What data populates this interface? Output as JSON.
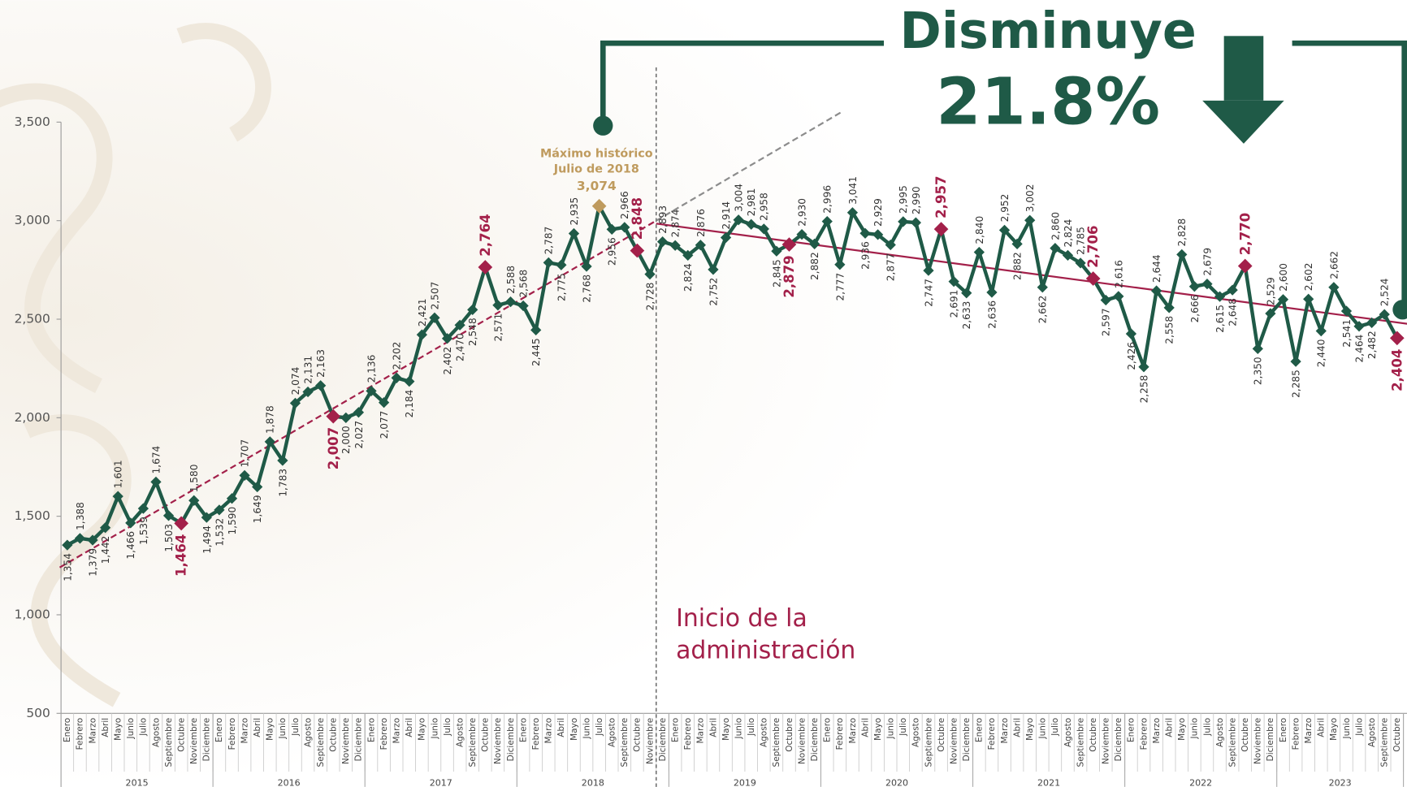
{
  "chart_data": {
    "type": "line",
    "headline": "Disminuye",
    "headline_value": "21.8%",
    "categories": [
      "Enero",
      "Febrero",
      "Marzo",
      "Abril",
      "Mayo",
      "Junio",
      "Julio",
      "Agosto",
      "Septiembre",
      "Octubre",
      "Noviembre",
      "Diciembre",
      "Enero",
      "Febrero",
      "Marzo",
      "Abril",
      "Mayo",
      "Junio",
      "Julio",
      "Agosto",
      "Septiembre",
      "Octubre",
      "Noviembre",
      "Diciembre",
      "Enero",
      "Febrero",
      "Marzo",
      "Abril",
      "Mayo",
      "Junio",
      "Julio",
      "Agosto",
      "Septiembre",
      "Octubre",
      "Noviembre",
      "Diciembre",
      "Enero",
      "Febrero",
      "Marzo",
      "Abril",
      "Mayo",
      "Junio",
      "Julio",
      "Agosto",
      "Septiembre",
      "Octubre",
      "Noviembre",
      "Diciembre",
      "Enero",
      "Febrero",
      "Marzo",
      "Abril",
      "Mayo",
      "Junio",
      "Julio",
      "Agosto",
      "Septiembre",
      "Octubre",
      "Noviembre",
      "Diciembre",
      "Enero",
      "Febrero",
      "Marzo",
      "Abril",
      "Mayo",
      "Junio",
      "Julio",
      "Agosto",
      "Septiembre",
      "Octubre",
      "Noviembre",
      "Diciembre",
      "Enero",
      "Febrero",
      "Marzo",
      "Abril",
      "Mayo",
      "Junio",
      "Julio",
      "Agosto",
      "Septiembre",
      "Octubre",
      "Noviembre",
      "Diciembre",
      "Enero",
      "Febrero",
      "Marzo",
      "Abril",
      "Mayo",
      "Junio",
      "Julio",
      "Agosto",
      "Septiembre",
      "Octubre",
      "Noviembre",
      "Diciembre",
      "Enero",
      "Febrero",
      "Marzo",
      "Abril",
      "Mayo",
      "Junio",
      "Julio",
      "Agosto",
      "Septiembre",
      "Octubre"
    ],
    "years": [
      "2015",
      "2016",
      "2017",
      "2018",
      "2019",
      "2020",
      "2021",
      "2022",
      "2023"
    ],
    "values": [
      1354,
      1388,
      1379,
      1442,
      1601,
      1466,
      1539,
      1674,
      1503,
      1464,
      1580,
      1494,
      1532,
      1590,
      1707,
      1649,
      1878,
      1783,
      2074,
      2131,
      2163,
      2007,
      2000,
      2027,
      2136,
      2077,
      2202,
      2184,
      2421,
      2507,
      2402,
      2470,
      2548,
      2764,
      2571,
      2588,
      2568,
      2445,
      2787,
      2775,
      2935,
      2768,
      3074,
      2956,
      2966,
      2848,
      2728,
      2893,
      2874,
      2824,
      2876,
      2752,
      2914,
      3004,
      2981,
      2958,
      2845,
      2879,
      2930,
      2882,
      2996,
      2777,
      3041,
      2936,
      2929,
      2877,
      2995,
      2990,
      2747,
      2957,
      2691,
      2633,
      2840,
      2636,
      2952,
      2882,
      3002,
      2662,
      2860,
      2824,
      2785,
      2706,
      2597,
      2616,
      2426,
      2258,
      2644,
      2558,
      2828,
      2666,
      2679,
      2615,
      2648,
      2770,
      2350,
      2529,
      2600,
      2285,
      2602,
      2440,
      2662,
      2541,
      2464,
      2482,
      2524,
      2404
    ],
    "value_labels": [
      "1,354",
      "1,388",
      "1,379",
      "1,442",
      "1,601",
      "1,466",
      "1,539",
      "1,674",
      "1,503",
      "1,464",
      "1,580",
      "1,494",
      "1,532",
      "1,590",
      "1,707",
      "1,649",
      "1,878",
      "1,783",
      "2,074",
      "2,131",
      "2,163",
      "2,007",
      "2,000",
      "2,027",
      "2,136",
      "2,077",
      "2,202",
      "2,184",
      "2,421",
      "2,507",
      "2,402",
      "2,470",
      "2,548",
      "2,764",
      "2,571",
      "2,588",
      "2,568",
      "2,445",
      "2,787",
      "2,775",
      "2,935",
      "2,768",
      "3,074",
      "2,956",
      "2,966",
      "2,848",
      "2,728",
      "2,893",
      "2,874",
      "2,824",
      "2,876",
      "2,752",
      "2,914",
      "3,004",
      "2,981",
      "2,958",
      "2,845",
      "2,879",
      "2,930",
      "2,882",
      "2,996",
      "2,777",
      "3,041",
      "2,936",
      "2,929",
      "2,877",
      "2,995",
      "2,990",
      "2,747",
      "2,957",
      "2,691",
      "2,633",
      "2,840",
      "2,636",
      "2,952",
      "2,882",
      "3,002",
      "2,662",
      "2,860",
      "2,824",
      "2,785",
      "2,706",
      "2,597",
      "2,616",
      "2,426",
      "2,258",
      "2,644",
      "2,558",
      "2,828",
      "2,666",
      "2,679",
      "2,615",
      "2,648",
      "2,770",
      "2,350",
      "2,529",
      "2,600",
      "2,285",
      "2,602",
      "2,440",
      "2,662",
      "2,541",
      "2,464",
      "2,482",
      "2,524",
      "2,404"
    ],
    "color": "#1f5a47",
    "highlight": {
      "color": "#a3204a",
      "indices": [
        9,
        21,
        33,
        45,
        57,
        69,
        81,
        93,
        105
      ]
    },
    "maximum": {
      "index": 42,
      "color": "#bf9b5e",
      "annotation": [
        "Máximo histórico",
        "Julio de 2018"
      ]
    },
    "trend_lines": [
      {
        "color": "#a3204a",
        "dashed": true,
        "x": [
          -0.6,
          46.5
        ],
        "y": [
          1240,
          3000
        ]
      },
      {
        "color": "#8c8c8c",
        "dashed": true,
        "x": [
          46.5,
          61.1
        ],
        "y": [
          3000,
          3550
        ]
      },
      {
        "color": "#a3204a",
        "dashed": false,
        "x": [
          46.5,
          106
        ],
        "y": [
          2985,
          2475
        ]
      }
    ],
    "start_marker": {
      "x": 46.5,
      "text": [
        "Inicio de la",
        "administración"
      ],
      "color": "#a3204a"
    },
    "ylim": [
      500,
      3500
    ],
    "yticks": [
      500,
      {
        "value": 1000,
        "label": "1,000"
      },
      {
        "value": 1500,
        "label": "1,500"
      },
      {
        "value": 2000,
        "label": "2,000"
      },
      {
        "value": 2500,
        "label": "2,500"
      },
      {
        "value": 3000,
        "label": "3,000"
      },
      {
        "value": 3500,
        "label": "3,500"
      }
    ],
    "grid": false
  }
}
